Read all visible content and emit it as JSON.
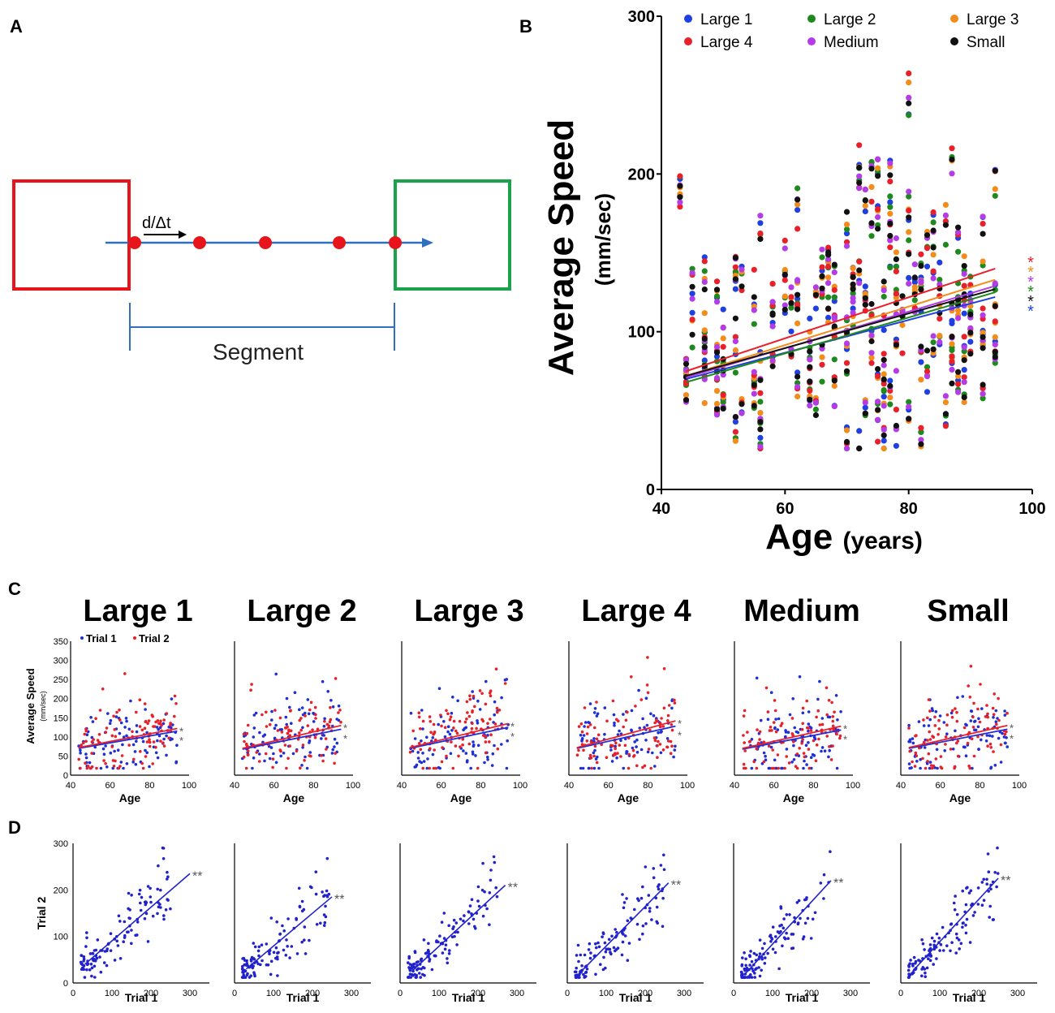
{
  "panel_labels": {
    "a": "A",
    "b": "B",
    "c": "C",
    "d": "D"
  },
  "panel_a": {
    "velocity_label": "d/Δt",
    "segment_label": "Segment",
    "colors": {
      "start_box": "#e8141c",
      "end_box": "#1aa34a",
      "path": "#2f6fc0",
      "dots": "#e8141c",
      "bracket": "#2f6fc0"
    }
  },
  "chart_data": [
    {
      "id": "B",
      "type": "scatter",
      "xlabel": "Age",
      "xlabel_unit": "(years)",
      "ylabel": "Average Speed",
      "ylabel_unit": "(mm/sec)",
      "xlim": [
        40,
        100
      ],
      "ylim": [
        0,
        300
      ],
      "xticks": [
        "40",
        "60",
        "80",
        "100"
      ],
      "yticks": [
        "0",
        "100",
        "200",
        "300"
      ],
      "legend_position": "top",
      "series": [
        {
          "name": "Large 1",
          "color": "#1f3fe0",
          "fit": {
            "x": [
              44,
              94
            ],
            "y": [
              70,
              122
            ]
          },
          "star": "*"
        },
        {
          "name": "Large 2",
          "color": "#1e8a1e",
          "fit": {
            "x": [
              44,
              94
            ],
            "y": [
              68,
              125
            ]
          },
          "star": "*"
        },
        {
          "name": "Large 3",
          "color": "#f28c1a",
          "fit": {
            "x": [
              44,
              94
            ],
            "y": [
              72,
              133
            ]
          },
          "star": "*"
        },
        {
          "name": "Large 4",
          "color": "#e8202a",
          "fit": {
            "x": [
              44,
              94
            ],
            "y": [
              75,
              140
            ]
          },
          "star": "*"
        },
        {
          "name": "Medium",
          "color": "#b43ce6",
          "fit": {
            "x": [
              44,
              94
            ],
            "y": [
              71,
              129
            ]
          },
          "star": "*"
        },
        {
          "name": "Small",
          "color": "#111111",
          "fit": {
            "x": [
              44,
              94
            ],
            "y": [
              72,
              127
            ]
          },
          "star": "*"
        }
      ]
    },
    {
      "id": "C",
      "type": "scatter",
      "xlabel": "Age",
      "ylabel": "Average Speed",
      "ylabel_unit": "(mm/sec)",
      "xlim": [
        40,
        100
      ],
      "ylim": [
        0,
        350
      ],
      "xticks": [
        "40",
        "60",
        "80",
        "100"
      ],
      "yticks": [
        "0",
        "50",
        "100",
        "150",
        "200",
        "250",
        "300",
        "350"
      ],
      "legend": [
        {
          "name": "Trial 1",
          "color": "#1f2fd8"
        },
        {
          "name": "Trial 2",
          "color": "#e8202a"
        }
      ],
      "panels": [
        {
          "title": "Large 1",
          "fits": [
            {
              "x": [
                44,
                94
              ],
              "y": [
                70,
                115
              ]
            },
            {
              "x": [
                44,
                94
              ],
              "y": [
                72,
                122
              ]
            }
          ],
          "stars": [
            "*",
            "*"
          ]
        },
        {
          "title": "Large 2",
          "fits": [
            {
              "x": [
                44,
                94
              ],
              "y": [
                68,
                120
              ]
            },
            {
              "x": [
                44,
                94
              ],
              "y": [
                70,
                130
              ]
            }
          ],
          "stars": [
            "*",
            "*"
          ]
        },
        {
          "title": "Large 3",
          "fits": [
            {
              "x": [
                44,
                94
              ],
              "y": [
                70,
                125
              ]
            },
            {
              "x": [
                44,
                94
              ],
              "y": [
                72,
                135
              ]
            }
          ],
          "stars": [
            "*",
            "*"
          ]
        },
        {
          "title": "Large 4",
          "fits": [
            {
              "x": [
                44,
                94
              ],
              "y": [
                70,
                128
              ]
            },
            {
              "x": [
                44,
                94
              ],
              "y": [
                72,
                142
              ]
            }
          ],
          "stars": [
            "*",
            "*"
          ]
        },
        {
          "title": "Medium",
          "fits": [
            {
              "x": [
                44,
                94
              ],
              "y": [
                68,
                118
              ]
            },
            {
              "x": [
                44,
                94
              ],
              "y": [
                70,
                128
              ]
            }
          ],
          "stars": [
            "*",
            "*"
          ]
        },
        {
          "title": "Small",
          "fits": [
            {
              "x": [
                44,
                94
              ],
              "y": [
                70,
                120
              ]
            },
            {
              "x": [
                44,
                94
              ],
              "y": [
                72,
                130
              ]
            }
          ],
          "stars": [
            "*",
            "*"
          ]
        }
      ]
    },
    {
      "id": "D",
      "type": "scatter",
      "xlabel": "Trial 1",
      "ylabel": "Trial 2",
      "xlim": [
        0,
        350
      ],
      "ylim": [
        0,
        300
      ],
      "xticks": [
        "0",
        "100",
        "200",
        "300"
      ],
      "yticks": [
        "0",
        "100",
        "200",
        "300"
      ],
      "color": "#2222cc",
      "panels": [
        {
          "fit": {
            "x": [
              30,
              300
            ],
            "y": [
              40,
              235
            ]
          },
          "stars": "**"
        },
        {
          "fit": {
            "x": [
              30,
              250
            ],
            "y": [
              30,
              185
            ]
          },
          "stars": "**"
        },
        {
          "fit": {
            "x": [
              30,
              270
            ],
            "y": [
              25,
              210
            ]
          },
          "stars": "**"
        },
        {
          "fit": {
            "x": [
              30,
              260
            ],
            "y": [
              20,
              215
            ]
          },
          "stars": "**"
        },
        {
          "fit": {
            "x": [
              30,
              250
            ],
            "y": [
              20,
              220
            ]
          },
          "stars": "**"
        },
        {
          "fit": {
            "x": [
              30,
              250
            ],
            "y": [
              25,
              225
            ]
          },
          "stars": "**"
        }
      ]
    }
  ]
}
